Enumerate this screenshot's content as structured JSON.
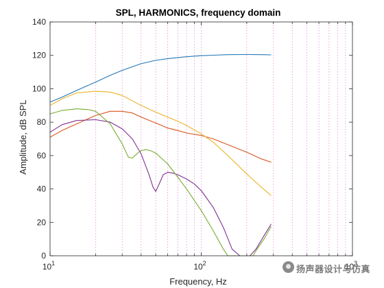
{
  "chart_data": {
    "type": "line",
    "title": "SPL, HARMONICS, frequency domain",
    "xlabel": "Frequency, Hz",
    "ylabel": "Amplitude, dB SPL",
    "xscale": "log",
    "xlim": [
      10,
      1000
    ],
    "ylim": [
      0,
      140
    ],
    "y_ticks": [
      "0",
      "20",
      "40",
      "60",
      "80",
      "100",
      "120",
      "140"
    ],
    "x_ticks": [
      {
        "base": "10",
        "exp": "1"
      },
      {
        "base": "10",
        "exp": "2"
      },
      {
        "base": "10",
        "exp": "3"
      }
    ],
    "grid": {
      "x_minor": true,
      "style": "dotted",
      "color": "#e08be0"
    },
    "colors": [
      "#1f77b4",
      "#d95319",
      "#edb120",
      "#7e2f8e",
      "#77ac30"
    ],
    "series": [
      {
        "color": "#1f77b4",
        "x": [
          10,
          12,
          15,
          20,
          25,
          30,
          40,
          50,
          60,
          70,
          80,
          100,
          120,
          150,
          200,
          250,
          290
        ],
        "y": [
          92,
          95,
          99,
          104,
          108,
          111,
          115,
          117,
          118,
          118.7,
          119.2,
          119.8,
          120.1,
          120.4,
          120.5,
          120.4,
          120.3
        ]
      },
      {
        "color": "#d95319",
        "x": [
          10,
          12,
          15,
          20,
          25,
          30,
          35,
          40,
          50,
          60,
          70,
          80,
          100,
          120,
          150,
          200,
          250,
          290
        ],
        "y": [
          71,
          75,
          79,
          84,
          86.5,
          86.5,
          85.5,
          83,
          79.5,
          76.5,
          75,
          73.5,
          72,
          70,
          66.5,
          62,
          58,
          56
        ]
      },
      {
        "color": "#edb120",
        "x": [
          10,
          12,
          15,
          20,
          25,
          30,
          40,
          50,
          60,
          70,
          80,
          100,
          120,
          150,
          200,
          250,
          290
        ],
        "y": [
          90,
          94,
          97.5,
          98.5,
          98,
          96,
          90,
          86,
          83,
          80.5,
          78,
          73,
          68,
          60,
          49,
          41,
          36
        ]
      },
      {
        "color": "#7e2f8e",
        "x": [
          10,
          12,
          15,
          20,
          25,
          30,
          35,
          40,
          45,
          48,
          50,
          53,
          56,
          60,
          65,
          70,
          80,
          90,
          100,
          120,
          140,
          160,
          180,
          190,
          200,
          210,
          230,
          260,
          290
        ],
        "y": [
          74,
          78.5,
          81,
          81.5,
          80,
          76,
          70,
          61,
          49,
          41,
          38.5,
          43.5,
          48.5,
          50,
          49.5,
          48.5,
          46,
          43,
          39,
          29,
          17,
          4,
          0,
          0,
          0,
          0,
          4,
          12,
          19
        ]
      },
      {
        "color": "#77ac30",
        "x": [
          10,
          12,
          15,
          18,
          20,
          25,
          30,
          33,
          35,
          38,
          40,
          43,
          46,
          50,
          60,
          70,
          80,
          100,
          120,
          140,
          150,
          160,
          200,
          220,
          230,
          260,
          290
        ],
        "y": [
          85,
          87,
          88,
          87.5,
          86.5,
          79,
          67,
          59,
          58.5,
          61.5,
          63,
          63.5,
          63,
          61.5,
          55,
          47,
          40,
          27,
          15,
          4,
          0,
          0,
          0,
          0,
          3,
          10,
          17.5
        ]
      }
    ]
  },
  "watermark": {
    "text": "扬声器设计与仿真",
    "icon": "wechat-icon"
  }
}
